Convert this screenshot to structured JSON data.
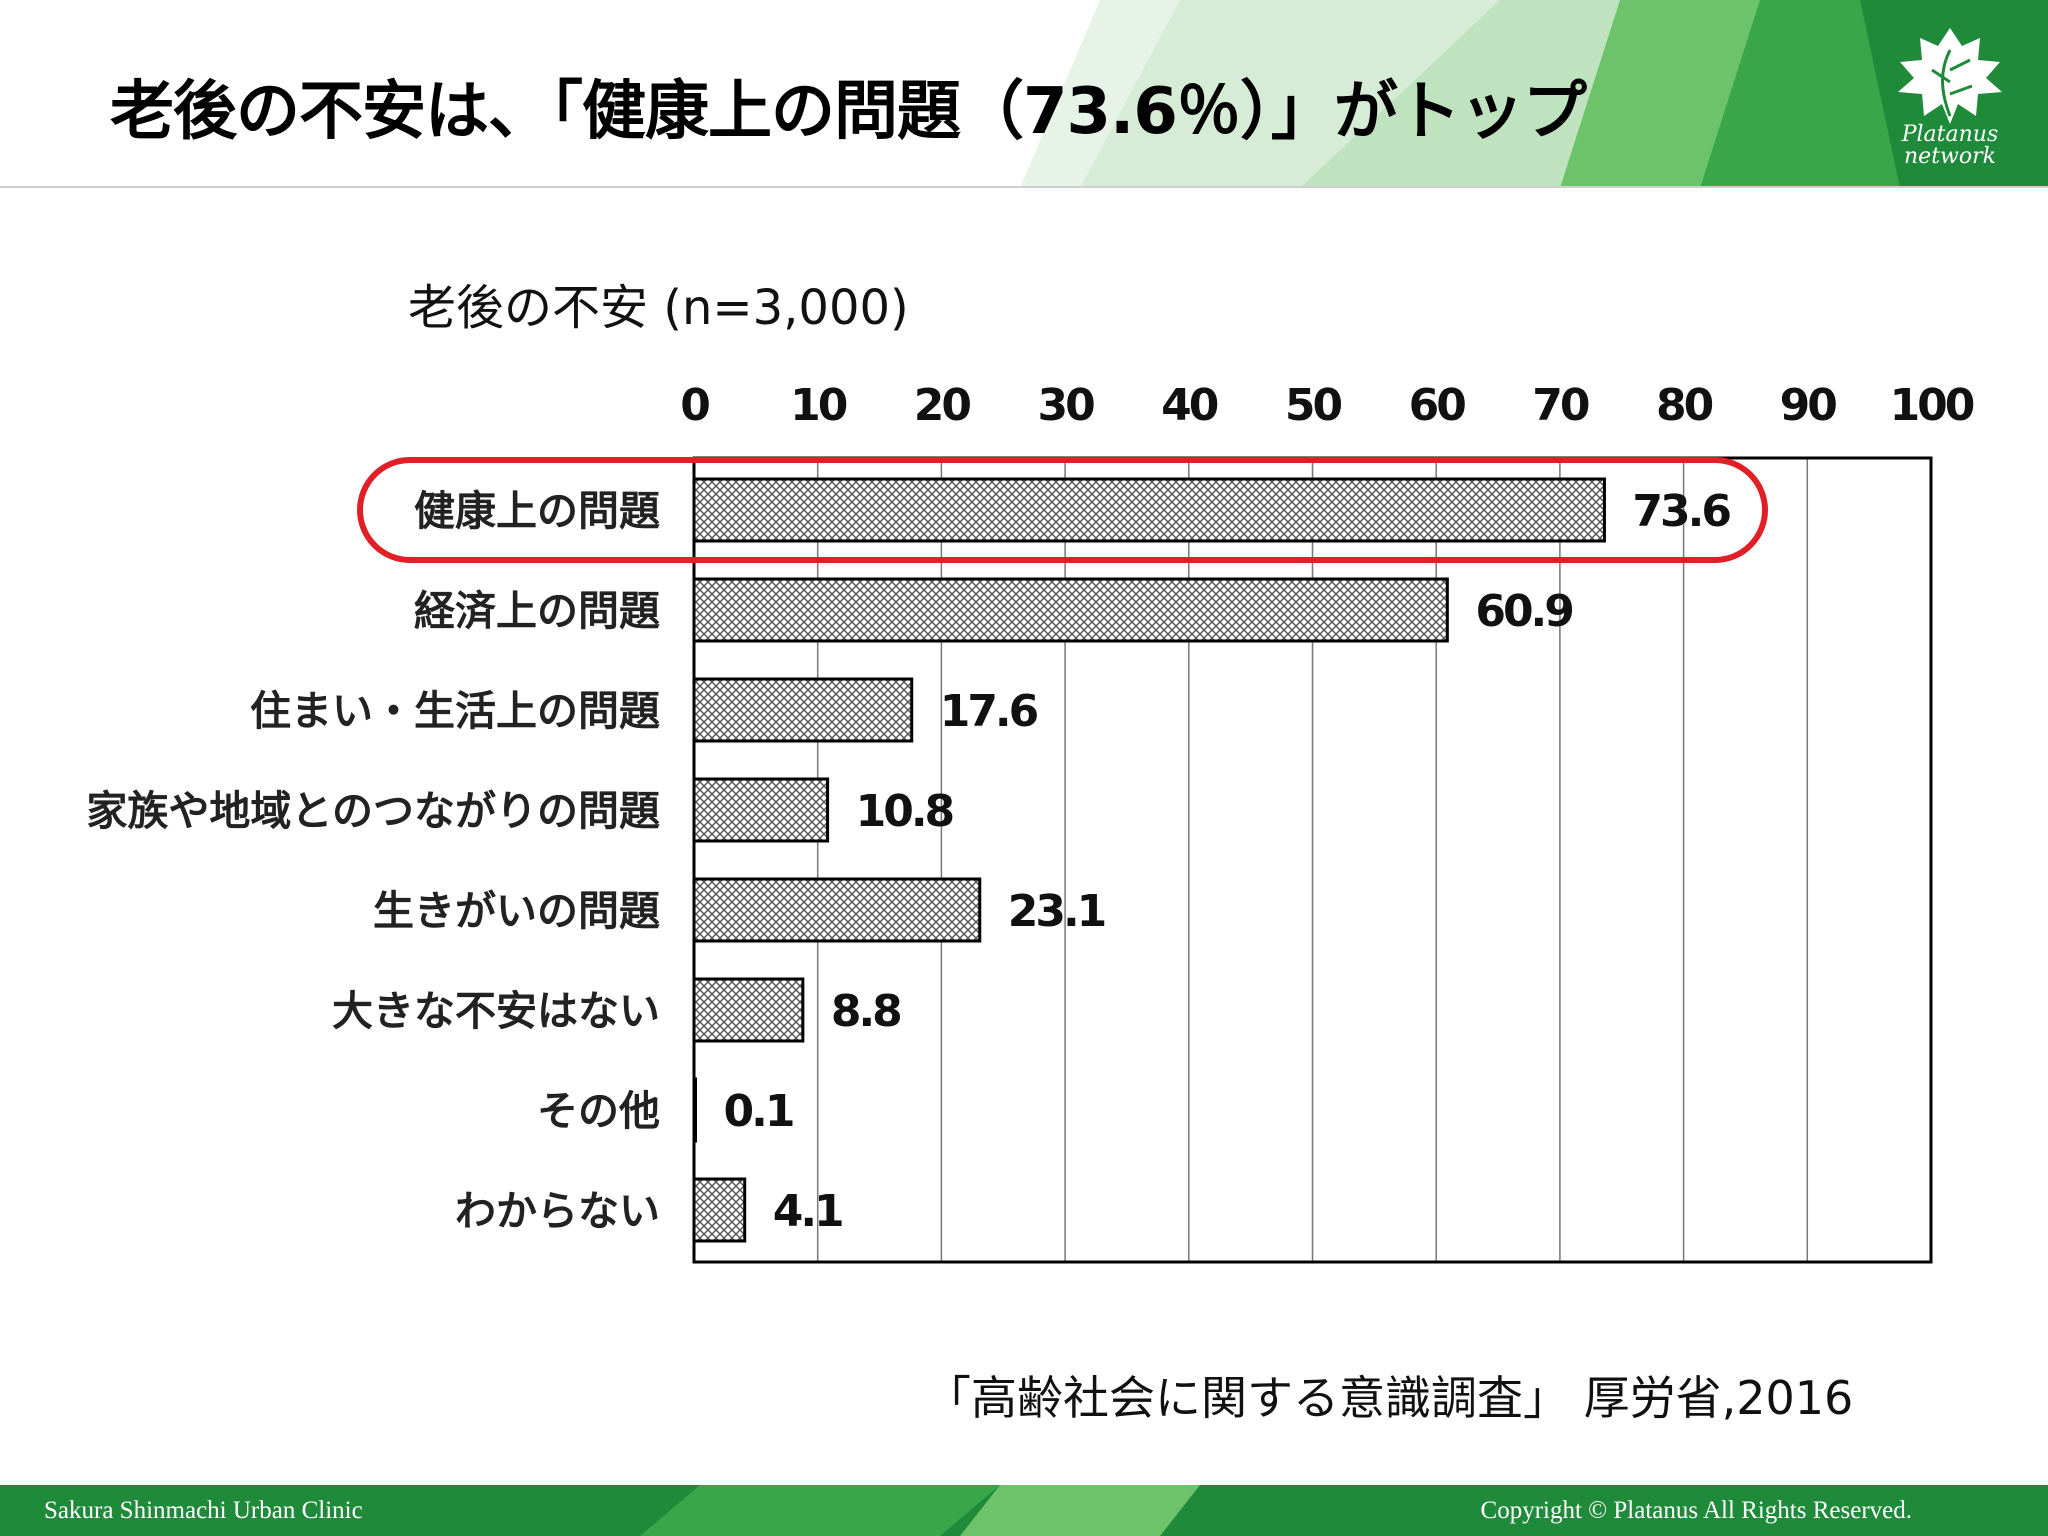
{
  "slide": {
    "title": "老後の不安は、「健康上の問題（73.6％）」がトップ",
    "logo_line1": "Platanus",
    "logo_line2": "network",
    "logo_icon": "platanus-leaf-icon",
    "source": "「高齢社会に関する意識調査」 厚労省,2016",
    "footer_left": "Sakura Shinmachi Urban Clinic",
    "footer_right": "Copyright © Platanus All Rights Reserved.",
    "colors": {
      "brand_green": "#1f8a3a",
      "light_green": "#6cc36a",
      "highlight_red": "#e01f26",
      "bar_fill": "#c8c8c8",
      "bar_outline": "#000000"
    }
  },
  "chart_data": {
    "type": "bar",
    "orientation": "horizontal",
    "title": "老後の不安 (n=3,000)",
    "categories": [
      "健康上の問題",
      "経済上の問題",
      "住まい・生活上の問題",
      "家族や地域とのつながりの問題",
      "生きがいの問題",
      "大きな不安はない",
      "その他",
      "わからない"
    ],
    "values": [
      73.6,
      60.9,
      17.6,
      10.8,
      23.1,
      8.8,
      0.1,
      4.1
    ],
    "value_labels": [
      "73.6",
      "60.9",
      "17.6",
      "10.8",
      "23.1",
      "8.8",
      "0.1",
      "4.1"
    ],
    "xlim": [
      0,
      100
    ],
    "xticks": [
      "0",
      "10",
      "20",
      "30",
      "40",
      "50",
      "60",
      "70",
      "80",
      "90",
      "100"
    ],
    "tick_position": "top",
    "grid": "vertical",
    "highlight_category": "健康上の問題",
    "bar_pattern": "crosshatch"
  }
}
